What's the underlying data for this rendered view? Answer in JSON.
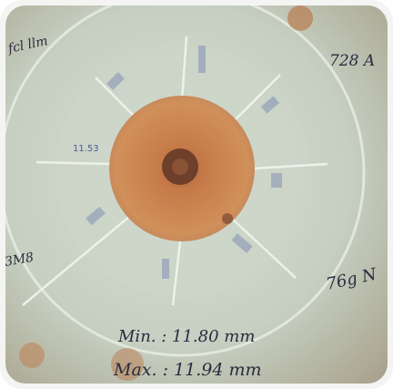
{
  "annotations": {
    "top_left": "fcl llm",
    "top_right": "728 A",
    "left": "3M8",
    "right": "76g N",
    "center_left": "11.53",
    "min": "Min. : 11.80 mm",
    "max": "Max. : 11.94 mm"
  }
}
